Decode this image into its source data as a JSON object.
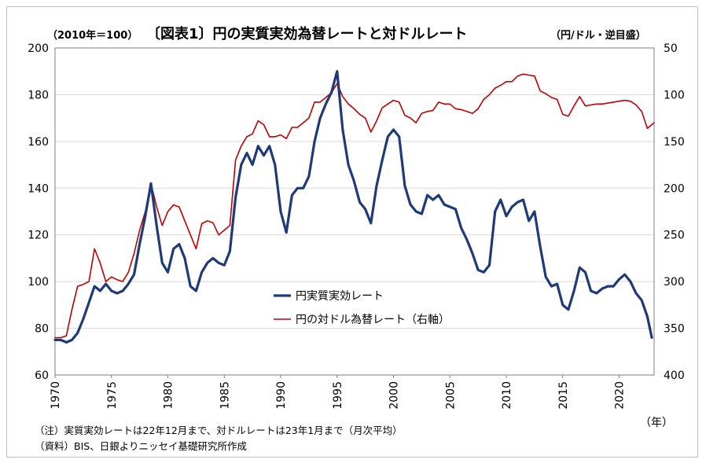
{
  "chart_data": {
    "type": "line",
    "title": "〔図表1〕円の実質実効為替レートと対ドルレート",
    "title_prefix": "（2010年＝100）",
    "title_suffix": "（円/ドル・逆目盛）",
    "x_unit_label": "（年）",
    "xlim": [
      1970,
      2023.1
    ],
    "x_ticks": [
      1970,
      1975,
      1980,
      1985,
      1990,
      1995,
      2000,
      2005,
      2010,
      2015,
      2020
    ],
    "y_left": {
      "lim": [
        60,
        200
      ],
      "ticks": [
        60,
        80,
        100,
        120,
        140,
        160,
        180,
        200
      ]
    },
    "y_right": {
      "lim": [
        400,
        50
      ],
      "ticks": [
        50,
        100,
        150,
        200,
        250,
        300,
        350,
        400
      ],
      "inverted": true
    },
    "grid": "horizontal",
    "legend_position": "center",
    "series": [
      {
        "name": "円実質実効レート",
        "axis": "left",
        "color": "#1f3a78",
        "x": [
          1970.0,
          1970.5,
          1971.0,
          1971.5,
          1972.0,
          1972.5,
          1973.0,
          1973.5,
          1974.0,
          1974.5,
          1975.0,
          1975.5,
          1976.0,
          1976.5,
          1977.0,
          1977.5,
          1978.0,
          1978.5,
          1979.0,
          1979.5,
          1980.0,
          1980.5,
          1981.0,
          1981.5,
          1982.0,
          1982.5,
          1983.0,
          1983.5,
          1984.0,
          1984.5,
          1985.0,
          1985.5,
          1986.0,
          1986.5,
          1987.0,
          1987.5,
          1988.0,
          1988.5,
          1989.0,
          1989.5,
          1990.0,
          1990.5,
          1991.0,
          1991.5,
          1992.0,
          1992.5,
          1993.0,
          1993.5,
          1994.0,
          1994.5,
          1995.0,
          1995.5,
          1996.0,
          1996.5,
          1997.0,
          1997.5,
          1998.0,
          1998.5,
          1999.0,
          1999.5,
          2000.0,
          2000.5,
          2001.0,
          2001.5,
          2002.0,
          2002.5,
          2003.0,
          2003.5,
          2004.0,
          2004.5,
          2005.0,
          2005.5,
          2006.0,
          2006.5,
          2007.0,
          2007.5,
          2008.0,
          2008.5,
          2009.0,
          2009.5,
          2010.0,
          2010.5,
          2011.0,
          2011.5,
          2012.0,
          2012.5,
          2013.0,
          2013.5,
          2014.0,
          2014.5,
          2015.0,
          2015.5,
          2016.0,
          2016.5,
          2017.0,
          2017.5,
          2018.0,
          2018.5,
          2019.0,
          2019.5,
          2020.0,
          2020.5,
          2021.0,
          2021.5,
          2022.0,
          2022.5,
          2022.9
        ],
        "values": [
          75,
          75,
          74,
          75,
          78,
          84,
          91,
          98,
          96,
          99,
          96,
          95,
          96,
          99,
          103,
          116,
          128,
          142,
          124,
          108,
          104,
          114,
          116,
          110,
          98,
          96,
          104,
          108,
          110,
          108,
          107,
          113,
          136,
          150,
          155,
          150,
          158,
          154,
          158,
          150,
          130,
          121,
          137,
          140,
          140,
          145,
          160,
          170,
          176,
          181,
          190,
          165,
          150,
          143,
          134,
          131,
          125,
          141,
          152,
          162,
          165,
          162,
          141,
          133,
          130,
          129,
          137,
          135,
          137,
          133,
          132,
          131,
          123,
          118,
          112,
          105,
          104,
          107,
          130,
          135,
          128,
          132,
          134,
          135,
          126,
          130,
          115,
          102,
          98,
          99,
          90,
          88,
          96,
          106,
          104,
          96,
          95,
          97,
          98,
          98,
          101,
          103,
          100,
          95,
          92,
          85,
          76
        ]
      },
      {
        "name": "円の対ドル為替レート（右軸）",
        "axis": "right",
        "color": "#c00000",
        "x": [
          1970.0,
          1970.5,
          1971.0,
          1971.5,
          1972.0,
          1972.5,
          1973.0,
          1973.5,
          1974.0,
          1974.5,
          1975.0,
          1975.5,
          1976.0,
          1976.5,
          1977.0,
          1977.5,
          1978.0,
          1978.5,
          1979.0,
          1979.5,
          1980.0,
          1980.5,
          1981.0,
          1981.5,
          1982.0,
          1982.5,
          1983.0,
          1983.5,
          1984.0,
          1984.5,
          1985.0,
          1985.5,
          1986.0,
          1986.5,
          1987.0,
          1987.5,
          1988.0,
          1988.5,
          1989.0,
          1989.5,
          1990.0,
          1990.5,
          1991.0,
          1991.5,
          1992.0,
          1992.5,
          1993.0,
          1993.5,
          1994.0,
          1994.5,
          1995.0,
          1995.5,
          1996.0,
          1996.5,
          1997.0,
          1997.5,
          1998.0,
          1998.5,
          1999.0,
          1999.5,
          2000.0,
          2000.5,
          2001.0,
          2001.5,
          2002.0,
          2002.5,
          2003.0,
          2003.5,
          2004.0,
          2004.5,
          2005.0,
          2005.5,
          2006.0,
          2006.5,
          2007.0,
          2007.5,
          2008.0,
          2008.5,
          2009.0,
          2009.5,
          2010.0,
          2010.5,
          2011.0,
          2011.5,
          2012.0,
          2012.5,
          2013.0,
          2013.5,
          2014.0,
          2014.5,
          2015.0,
          2015.5,
          2016.0,
          2016.5,
          2017.0,
          2017.5,
          2018.0,
          2018.5,
          2019.0,
          2019.5,
          2020.0,
          2020.5,
          2021.0,
          2021.5,
          2022.0,
          2022.5,
          2022.9,
          2023.1
        ],
        "values": [
          360,
          360,
          358,
          330,
          305,
          303,
          300,
          265,
          280,
          300,
          295,
          298,
          300,
          290,
          270,
          245,
          225,
          195,
          220,
          240,
          225,
          218,
          220,
          235,
          250,
          265,
          238,
          235,
          237,
          250,
          245,
          240,
          170,
          155,
          145,
          142,
          128,
          132,
          145,
          145,
          143,
          147,
          135,
          135,
          130,
          125,
          108,
          108,
          103,
          98,
          88,
          102,
          110,
          115,
          121,
          125,
          140,
          128,
          114,
          110,
          106,
          108,
          122,
          125,
          130,
          120,
          118,
          117,
          108,
          110,
          110,
          115,
          116,
          118,
          120,
          115,
          105,
          100,
          93,
          90,
          86,
          86,
          80,
          78,
          79,
          80,
          96,
          99,
          103,
          105,
          121,
          123,
          112,
          102,
          112,
          111,
          110,
          110,
          109,
          108,
          107,
          106,
          107,
          111,
          118,
          136,
          132,
          130
        ]
      }
    ]
  },
  "notes": [
    "（注）実質実効レートは22年12月まで、対ドルレートは23年1月まで（月次平均）",
    "（資料）BIS、日銀よりニッセイ基礎研究所作成"
  ]
}
